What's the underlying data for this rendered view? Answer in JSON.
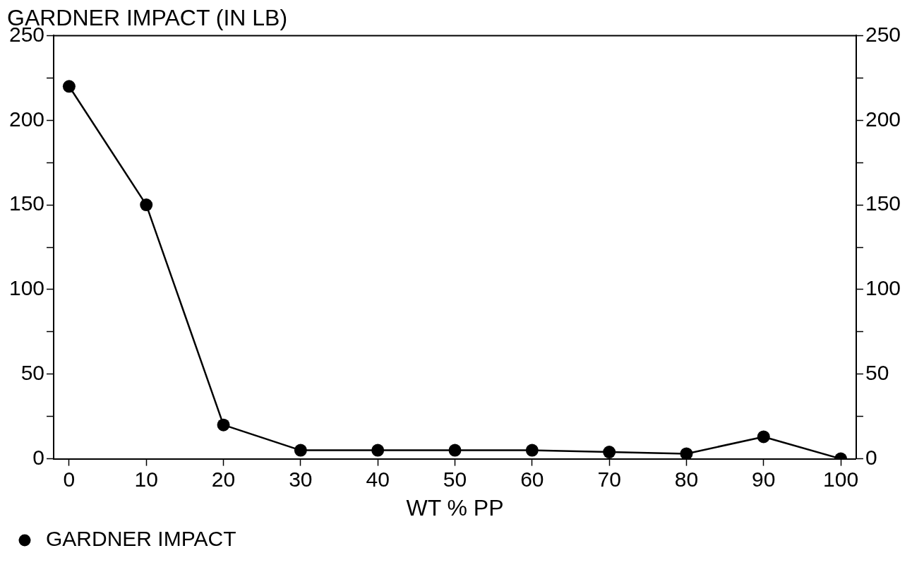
{
  "chart_data": {
    "type": "line",
    "title": "GARDNER IMPACT (IN LB)",
    "xlabel": "WT % PP",
    "x": [
      0,
      10,
      20,
      30,
      40,
      50,
      60,
      70,
      80,
      90,
      100
    ],
    "series": [
      {
        "name": "GARDNER IMPACT",
        "color": "#000000",
        "values": [
          220,
          150,
          20,
          5,
          5,
          5,
          5,
          4,
          3,
          13,
          0
        ]
      }
    ],
    "xlim": [
      -2,
      102
    ],
    "xticks": [
      0,
      10,
      20,
      30,
      40,
      50,
      60,
      70,
      80,
      90,
      100
    ],
    "ylim": [
      0,
      250
    ],
    "yticks": [
      0,
      {
        "value": 25,
        "label": null
      },
      50,
      {
        "value": 75,
        "label": null
      },
      100,
      {
        "value": 125,
        "label": null
      },
      150,
      {
        "value": 175,
        "label": null
      },
      200,
      {
        "value": 225,
        "label": null
      },
      250
    ],
    "y2lim": [
      0,
      250
    ],
    "y2ticks": [
      0,
      {
        "value": 25,
        "label": null
      },
      50,
      {
        "value": 75,
        "label": null
      },
      100,
      {
        "value": 125,
        "label": null
      },
      150,
      {
        "value": 175,
        "label": null
      },
      200,
      {
        "value": 225,
        "label": null
      },
      250
    ],
    "grid": false,
    "legend": "bottom left",
    "marker": "circle",
    "line_style": "solid"
  }
}
